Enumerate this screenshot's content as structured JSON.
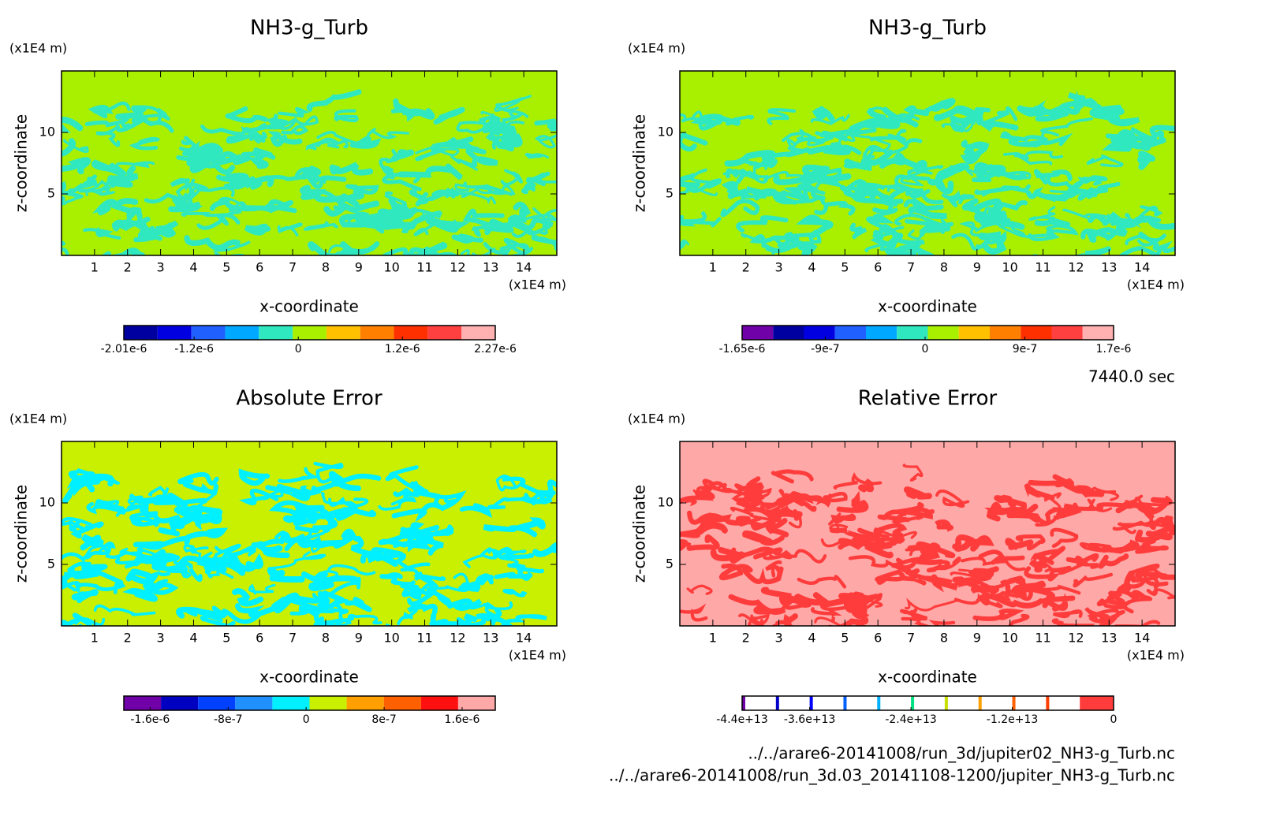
{
  "chart_data": [
    {
      "type": "contour",
      "title": "NH3-g_Turb",
      "xlabel": "x-coordinate",
      "ylabel": "z-coordinate",
      "xunit": "(x1E4 m)",
      "yunit": "(x1E4 m)",
      "xlim": [
        0,
        15
      ],
      "ylim": [
        0,
        15
      ],
      "xticks": [
        1,
        2,
        3,
        4,
        5,
        6,
        7,
        8,
        9,
        10,
        11,
        12,
        13,
        14
      ],
      "yticks": [
        5,
        10
      ],
      "field_colors": [
        "#a8f000",
        "#30e8c0"
      ],
      "colorbar": {
        "colors": [
          "#0000a0",
          "#0000e0",
          "#2060ff",
          "#00a8ff",
          "#30e8c0",
          "#a8f000",
          "#ffc000",
          "#ff8000",
          "#ff3000",
          "#ff4040",
          "#ffb0b0"
        ],
        "lim": [
          -2.01e-06,
          2.27e-06
        ],
        "ticks": [
          {
            "value": -2.01e-06,
            "label": "-2.01e-6"
          },
          {
            "value": -1.2e-06,
            "label": "-1.2e-6"
          },
          0,
          {
            "value": 1.2e-06,
            "label": "1.2e-6"
          },
          {
            "value": 2.27e-06,
            "label": "2.27e-6"
          }
        ]
      }
    },
    {
      "type": "contour",
      "title": "NH3-g_Turb",
      "xlabel": "x-coordinate",
      "ylabel": "z-coordinate",
      "xunit": "(x1E4 m)",
      "yunit": "(x1E4 m)",
      "xlim": [
        0,
        15
      ],
      "ylim": [
        0,
        15
      ],
      "xticks": [
        1,
        2,
        3,
        4,
        5,
        6,
        7,
        8,
        9,
        10,
        11,
        12,
        13,
        14
      ],
      "yticks": [
        5,
        10
      ],
      "field_colors": [
        "#a8f000",
        "#30e8c0"
      ],
      "colorbar": {
        "colors": [
          "#7000a8",
          "#0000a0",
          "#0000e0",
          "#2060ff",
          "#00a8ff",
          "#30e8c0",
          "#a8f000",
          "#ffc000",
          "#ff8000",
          "#ff3000",
          "#ff4040",
          "#ffb0b0"
        ],
        "lim": [
          -1.65e-06,
          1.7e-06
        ],
        "ticks": [
          {
            "value": -1.65e-06,
            "label": "-1.65e-6"
          },
          {
            "value": -9e-07,
            "label": "-9e-7"
          },
          0,
          {
            "value": 9e-07,
            "label": "9e-7"
          },
          {
            "value": 1.7e-06,
            "label": "1.7e-6"
          }
        ]
      }
    },
    {
      "type": "contour",
      "title": "Absolute Error",
      "xlabel": "x-coordinate",
      "ylabel": "z-coordinate",
      "xunit": "(x1E4 m)",
      "yunit": "(x1E4 m)",
      "xlim": [
        0,
        15
      ],
      "ylim": [
        0,
        15
      ],
      "xticks": [
        1,
        2,
        3,
        4,
        5,
        6,
        7,
        8,
        9,
        10,
        11,
        12,
        13,
        14
      ],
      "yticks": [
        5,
        10
      ],
      "field_colors": [
        "#c8f000",
        "#00f0ff"
      ],
      "colorbar": {
        "colors": [
          "#7000a8",
          "#0000c0",
          "#0040ff",
          "#2090ff",
          "#00f0ff",
          "#c8f000",
          "#ffa000",
          "#ff6000",
          "#ff1010",
          "#ffa8a8"
        ],
        "lim": [
          -1.87e-06,
          1.94e-06
        ],
        "ticks": [
          {
            "value": -1.6e-06,
            "label": "-1.6e-6"
          },
          {
            "value": -8e-07,
            "label": "-8e-7"
          },
          0,
          {
            "value": 8e-07,
            "label": "8e-7"
          },
          {
            "value": 1.6e-06,
            "label": "1.6e-6"
          }
        ]
      }
    },
    {
      "type": "contour",
      "title": "Relative Error",
      "xlabel": "x-coordinate",
      "ylabel": "z-coordinate",
      "xunit": "(x1E4 m)",
      "yunit": "(x1E4 m)",
      "xlim": [
        0,
        15
      ],
      "ylim": [
        0,
        15
      ],
      "xticks": [
        1,
        2,
        3,
        4,
        5,
        6,
        7,
        8,
        9,
        10,
        11,
        12,
        13,
        14
      ],
      "yticks": [
        5,
        10
      ],
      "field_colors": [
        "#ffa8a8",
        "#ff3c3c"
      ],
      "colorbar": {
        "lines": true,
        "colors": [
          "#7000a8",
          "#0000c8",
          "#0000ff",
          "#0060ff",
          "#00b0ff",
          "#00e080",
          "#c8e000",
          "#ffa000",
          "#ff6000",
          "#ff4000",
          "#ff3c3c"
        ],
        "lim": [
          -44000000000000.0,
          0
        ],
        "ticks": [
          {
            "value": -44000000000000.0,
            "label": "-4.4e+13"
          },
          {
            "value": -36000000000000.0,
            "label": "-3.6e+13"
          },
          {
            "value": -24000000000000.0,
            "label": "-2.4e+13"
          },
          {
            "value": -12000000000000.0,
            "label": "-1.2e+13"
          },
          0
        ]
      }
    }
  ],
  "time": "7440.0 sec",
  "files": [
    "../../arare6-20141008/run_3d/jupiter02_NH3-g_Turb.nc",
    "../../arare6-20141008/run_3d.03_20141108-1200/jupiter_NH3-g_Turb.nc"
  ]
}
